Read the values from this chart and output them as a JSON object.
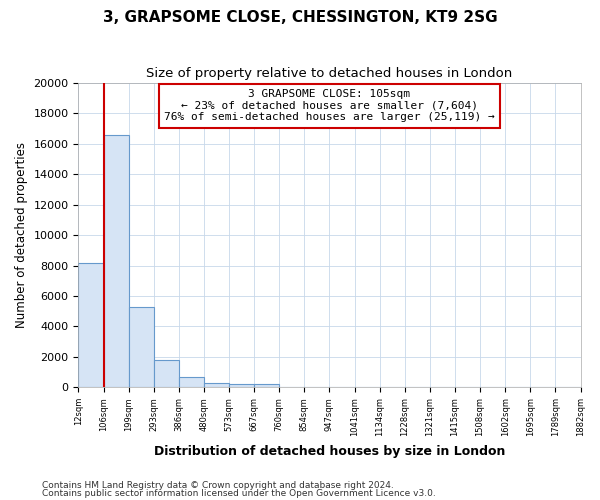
{
  "title": "3, GRAPSOME CLOSE, CHESSINGTON, KT9 2SG",
  "subtitle": "Size of property relative to detached houses in London",
  "xlabel": "Distribution of detached houses by size in London",
  "ylabel": "Number of detached properties",
  "property_label": "3 GRAPSOME CLOSE: 105sqm",
  "annotation_line1": "← 23% of detached houses are smaller (7,604)",
  "annotation_line2": "76% of semi-detached houses are larger (25,119) →",
  "footer_line1": "Contains HM Land Registry data © Crown copyright and database right 2024.",
  "footer_line2": "Contains public sector information licensed under the Open Government Licence v3.0.",
  "bar_color": "#d6e4f5",
  "bar_edge_color": "#6699cc",
  "vline_color": "#cc0000",
  "annotation_box_edge_color": "#cc0000",
  "grid_color": "#c8d8ea",
  "background_color": "#ffffff",
  "ylim": [
    0,
    20000
  ],
  "yticks": [
    0,
    2000,
    4000,
    6000,
    8000,
    10000,
    12000,
    14000,
    16000,
    18000,
    20000
  ],
  "bin_labels": [
    "12sqm",
    "106sqm",
    "199sqm",
    "293sqm",
    "386sqm",
    "480sqm",
    "573sqm",
    "667sqm",
    "760sqm",
    "854sqm",
    "947sqm",
    "1041sqm",
    "1134sqm",
    "1228sqm",
    "1321sqm",
    "1415sqm",
    "1508sqm",
    "1602sqm",
    "1695sqm",
    "1789sqm",
    "1882sqm"
  ],
  "bar_heights": [
    8200,
    16600,
    5300,
    1800,
    700,
    300,
    200,
    200,
    0,
    0,
    0,
    0,
    0,
    0,
    0,
    0,
    0,
    0,
    0,
    0
  ],
  "vline_x_bin": 1,
  "n_bins": 20
}
